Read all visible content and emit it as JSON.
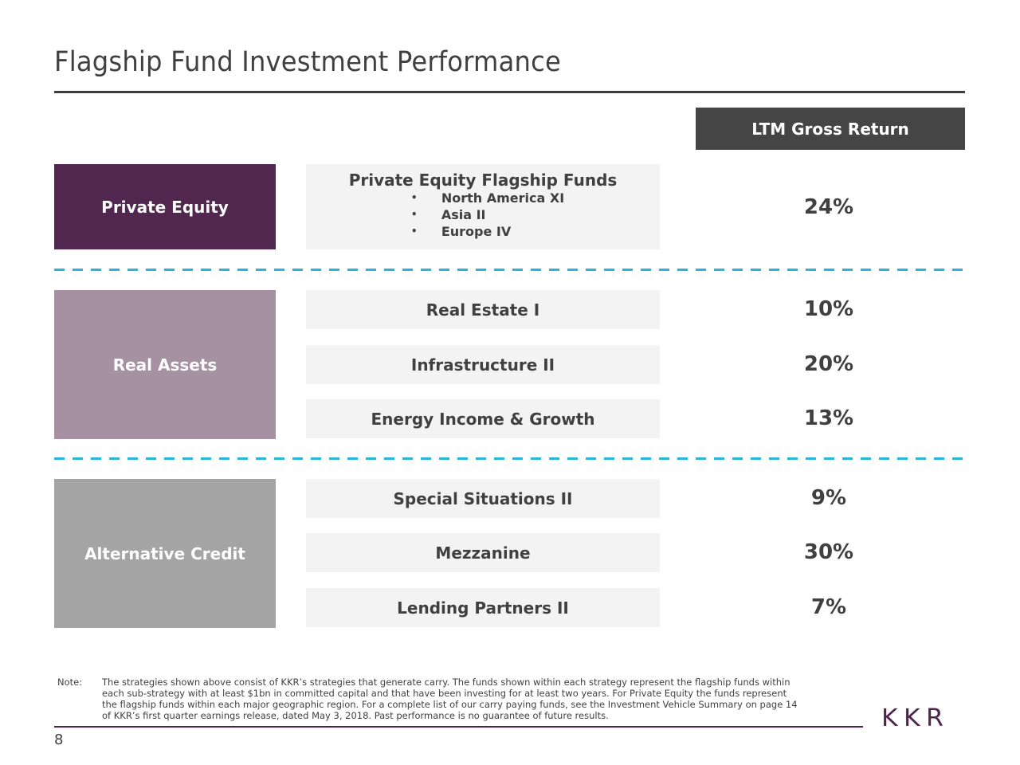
{
  "page": {
    "title": "Flagship Fund Investment Performance",
    "column_header": "LTM Gross Return",
    "page_number": "8",
    "logo_text": "KKR"
  },
  "colors": {
    "private_equity": "#52274f",
    "real_assets": "#a691a3",
    "alternative_credit": "#a4a4a4",
    "header_bg": "#454545",
    "divider": "#29b5d9",
    "fund_bg": "#f3f3f3",
    "brand": "#4f2550"
  },
  "sections": {
    "private_equity": {
      "label": "Private Equity",
      "heading": "Private Equity Flagship Funds",
      "bullet": "•",
      "funds": [
        "North America XI",
        "Asia II",
        "Europe IV"
      ],
      "return": "24%"
    },
    "real_assets": {
      "label": "Real Assets",
      "rows": [
        {
          "fund": "Real Estate I",
          "return": "10%"
        },
        {
          "fund": "Infrastructure II",
          "return": "20%"
        },
        {
          "fund": "Energy Income & Growth",
          "return": "13%"
        }
      ]
    },
    "alternative_credit": {
      "label": "Alternative Credit",
      "rows": [
        {
          "fund": "Special Situations II",
          "return": "9%"
        },
        {
          "fund": "Mezzanine",
          "return": "30%"
        },
        {
          "fund": "Lending Partners II",
          "return": "7%"
        }
      ]
    }
  },
  "note": {
    "label": "Note:",
    "lines": [
      "The strategies shown above consist of KKR’s strategies that generate carry. The funds shown within each strategy represent the flagship funds within",
      "each sub-strategy with at least $1bn in committed capital and that have been investing for at least two years. For Private Equity the funds represent",
      "the flagship funds within each major geographic region. For a complete list of our carry paying funds, see the Investment Vehicle Summary on page 14",
      "of KKR’s first quarter earnings release, dated May 3, 2018. Past performance is no guarantee of future results."
    ]
  }
}
